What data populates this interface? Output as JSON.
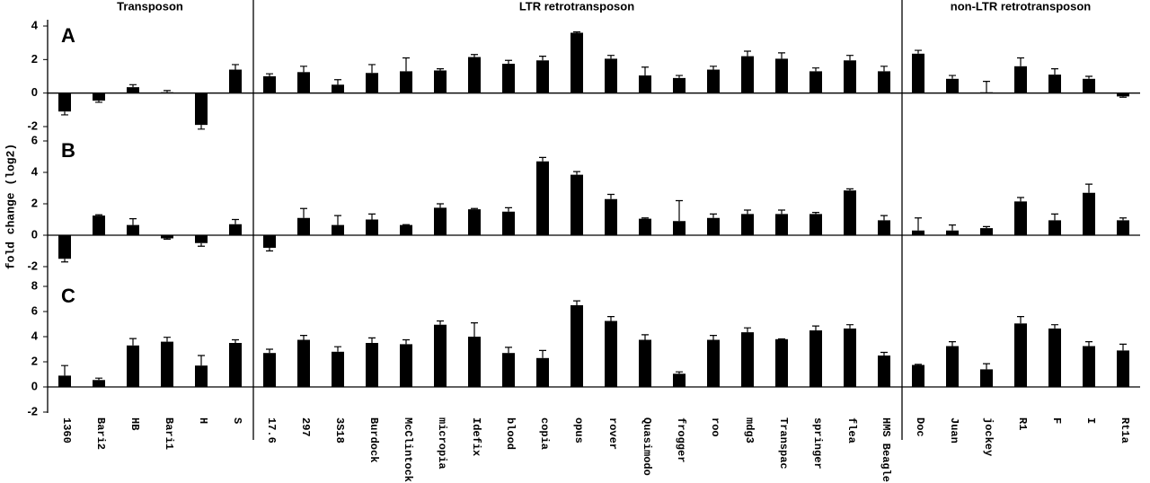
{
  "chart_data": {
    "type": "bar",
    "color": "#000000",
    "y_label": "fold change (log2)",
    "groups": [
      {
        "label": "Transposon",
        "categories": [
          "1360",
          "Bari2",
          "HB",
          "Bari1",
          "H",
          "S"
        ]
      },
      {
        "label": "LTR retrotransposon",
        "categories": [
          "17.6",
          "297",
          "3S18",
          "Burdock",
          "McClintock",
          "micropia",
          "Idefix",
          "blood",
          "copia",
          "opus",
          "rover",
          "Quasimodo",
          "frogger",
          "roo",
          "mdg3",
          "Transpac",
          "springer",
          "flea",
          "HMS Beagle"
        ]
      },
      {
        "label": "non-LTR retrotransposon",
        "categories": [
          "Doc",
          "Juan",
          "jockey",
          "R1",
          "F",
          "I",
          "Rt1a"
        ]
      }
    ],
    "panels": [
      {
        "label": "A",
        "ylim": [
          -2,
          4
        ],
        "yticks": [
          -2,
          0,
          2,
          4
        ],
        "values": [
          -1.1,
          -0.45,
          0.35,
          0.05,
          -1.9,
          1.4,
          1.0,
          1.25,
          0.5,
          1.2,
          1.3,
          1.35,
          2.15,
          1.75,
          1.95,
          3.6,
          2.05,
          1.05,
          0.9,
          1.4,
          2.2,
          2.05,
          1.3,
          1.95,
          1.3,
          2.35,
          0.85,
          0.05,
          1.6,
          1.1,
          0.85,
          -0.2
        ],
        "errors": [
          0.2,
          0.1,
          0.15,
          0.1,
          0.25,
          0.3,
          0.15,
          0.35,
          0.3,
          0.5,
          0.8,
          0.1,
          0.15,
          0.2,
          0.25,
          0.05,
          0.2,
          0.5,
          0.15,
          0.2,
          0.3,
          0.35,
          0.2,
          0.3,
          0.3,
          0.2,
          0.2,
          0.65,
          0.5,
          0.35,
          0.15,
          0.05
        ]
      },
      {
        "label": "B",
        "ylim": [
          -2,
          6
        ],
        "yticks": [
          -2,
          0,
          2,
          4,
          6
        ],
        "values": [
          -1.5,
          1.25,
          0.65,
          -0.2,
          -0.5,
          0.7,
          -0.8,
          1.1,
          0.65,
          1.0,
          0.65,
          1.75,
          1.65,
          1.5,
          4.7,
          3.85,
          2.3,
          1.05,
          0.9,
          1.1,
          1.35,
          1.35,
          1.35,
          2.85,
          0.95,
          0.3,
          0.3,
          0.45,
          2.15,
          0.95,
          2.7,
          0.95
        ],
        "errors": [
          0.2,
          0.05,
          0.4,
          0.05,
          0.2,
          0.3,
          0.2,
          0.6,
          0.6,
          0.35,
          0.02,
          0.25,
          0.05,
          0.25,
          0.25,
          0.2,
          0.3,
          0.05,
          1.3,
          0.25,
          0.25,
          0.25,
          0.1,
          0.1,
          0.3,
          0.8,
          0.35,
          0.1,
          0.25,
          0.4,
          0.55,
          0.15
        ]
      },
      {
        "label": "C",
        "ylim": [
          -2,
          8
        ],
        "yticks": [
          -2,
          0,
          2,
          4,
          6,
          8
        ],
        "values": [
          0.9,
          0.55,
          3.3,
          3.6,
          1.7,
          3.5,
          2.7,
          3.75,
          2.8,
          3.5,
          3.4,
          4.95,
          4.0,
          2.7,
          2.3,
          6.5,
          5.25,
          3.75,
          1.05,
          3.75,
          4.35,
          3.8,
          4.5,
          4.65,
          2.5,
          1.75,
          3.25,
          1.4,
          5.05,
          4.65,
          3.25,
          2.9
        ],
        "errors": [
          0.8,
          0.15,
          0.55,
          0.35,
          0.8,
          0.25,
          0.3,
          0.35,
          0.4,
          0.4,
          0.35,
          0.3,
          1.1,
          0.45,
          0.6,
          0.35,
          0.35,
          0.4,
          0.15,
          0.35,
          0.35,
          0.02,
          0.35,
          0.3,
          0.25,
          0.05,
          0.35,
          0.45,
          0.55,
          0.3,
          0.35,
          0.5
        ]
      }
    ]
  }
}
